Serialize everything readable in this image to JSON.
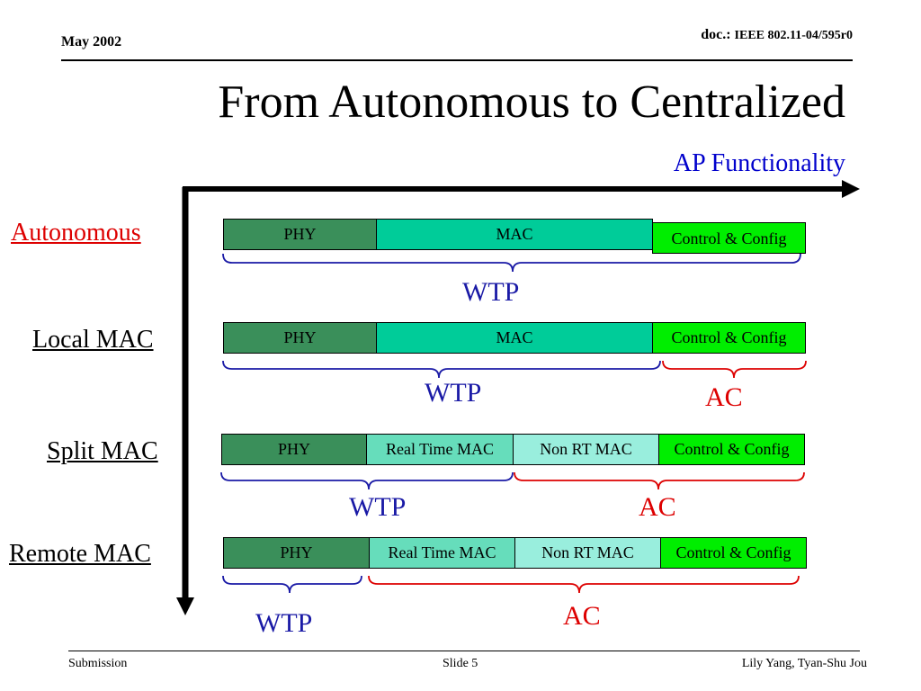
{
  "header": {
    "date": "May 2002",
    "doc_prefix": "doc.:",
    "doc_id": "IEEE 802.11-04/595r0"
  },
  "title": "From Autonomous to Centralized",
  "axis_label": "AP Functionality",
  "rows": [
    {
      "label": "Autonomous",
      "label_color": "#dd0000",
      "boxes": [
        "PHY",
        "MAC",
        "Control & Config"
      ],
      "groups": [
        {
          "label": "WTP",
          "color": "#1a1aa6"
        }
      ]
    },
    {
      "label": "Local MAC",
      "label_color": "#000000",
      "boxes": [
        "PHY",
        "MAC",
        "Control & Config"
      ],
      "groups": [
        {
          "label": "WTP",
          "color": "#1a1aa6"
        },
        {
          "label": "AC",
          "color": "#dd0000"
        }
      ]
    },
    {
      "label": "Split MAC",
      "label_color": "#000000",
      "boxes": [
        "PHY",
        "Real Time MAC",
        "Non RT MAC",
        "Control & Config"
      ],
      "groups": [
        {
          "label": "WTP",
          "color": "#1a1aa6"
        },
        {
          "label": "AC",
          "color": "#dd0000"
        }
      ]
    },
    {
      "label": "Remote MAC",
      "label_color": "#000000",
      "boxes": [
        "PHY",
        "Real Time MAC",
        "Non RT MAC",
        "Control & Config"
      ],
      "groups": [
        {
          "label": "WTP",
          "color": "#1a1aa6"
        },
        {
          "label": "AC",
          "color": "#dd0000"
        }
      ]
    }
  ],
  "footer": {
    "left": "Submission",
    "center": "Slide 5",
    "right": "Lily Yang, Tyan-Shu Jou"
  }
}
